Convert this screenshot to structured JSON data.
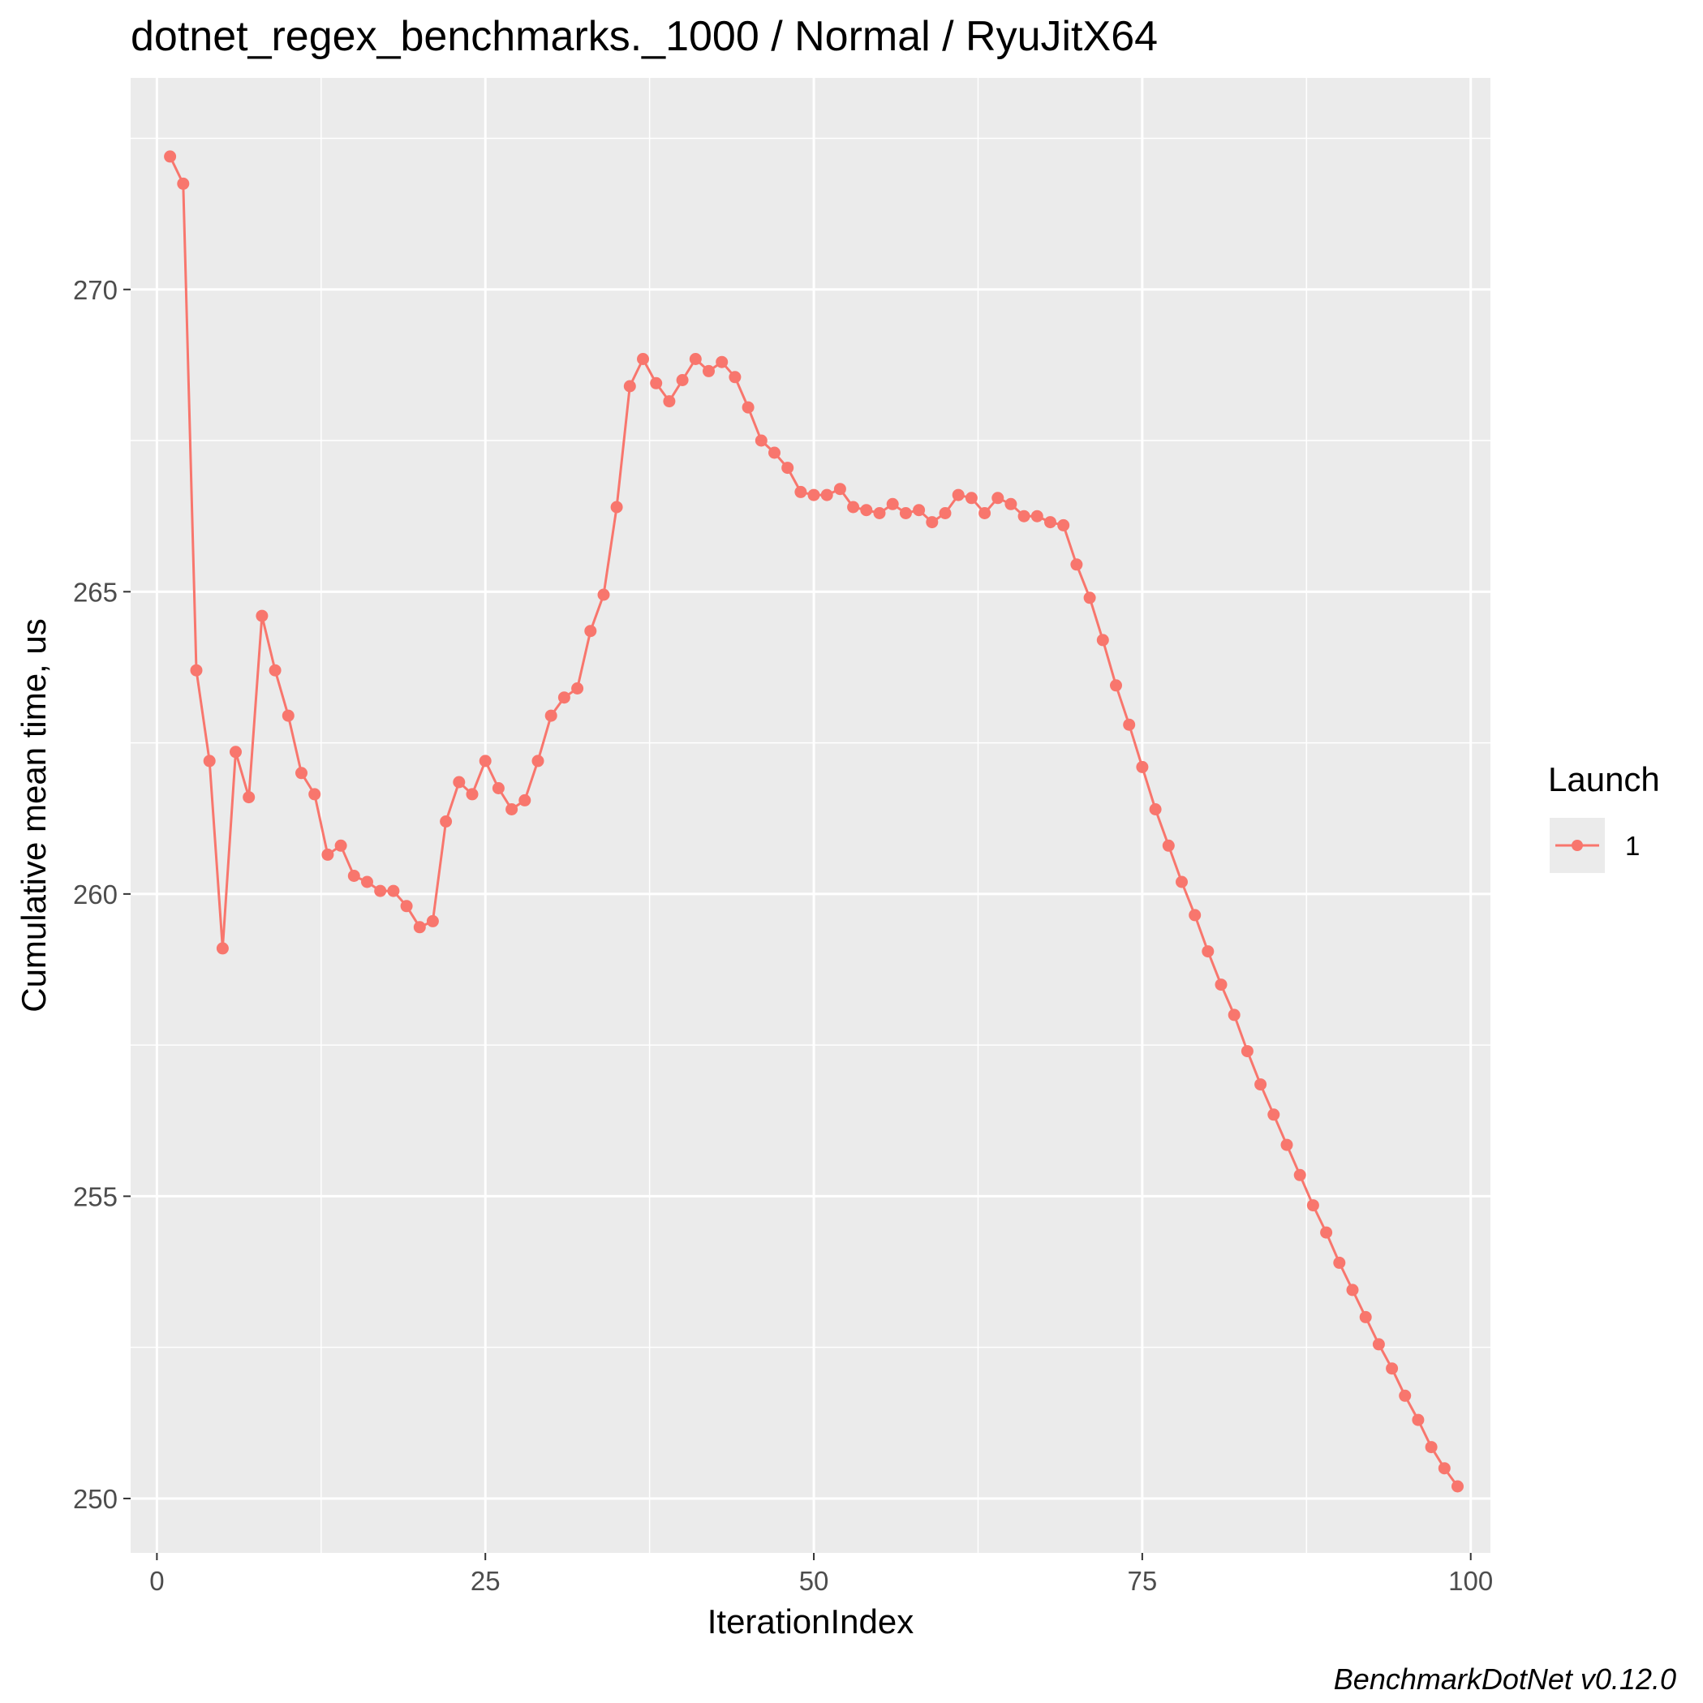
{
  "chart_data": {
    "type": "line",
    "title": "dotnet_regex_benchmarks._1000 / Normal / RyuJitX64",
    "xlabel": "IterationIndex",
    "ylabel": "Cumulative mean time, us",
    "caption": "BenchmarkDotNet v0.12.0",
    "xlim": [
      -2,
      101.5
    ],
    "ylim": [
      249.1,
      273.5
    ],
    "x_ticks": [
      0,
      25,
      50,
      75,
      100
    ],
    "y_ticks": [
      250,
      255,
      260,
      265,
      270
    ],
    "grid": true,
    "legend": {
      "title": "Launch",
      "position": "right",
      "entries": [
        "1"
      ]
    },
    "colors": {
      "series": "#f8766d",
      "panel": "#ebebeb",
      "grid": "#ffffff"
    },
    "series": [
      {
        "name": "1",
        "x": [
          1,
          2,
          3,
          4,
          5,
          6,
          7,
          8,
          9,
          10,
          11,
          12,
          13,
          14,
          15,
          16,
          17,
          18,
          19,
          20,
          21,
          22,
          23,
          24,
          25,
          26,
          27,
          28,
          29,
          30,
          31,
          32,
          33,
          34,
          35,
          36,
          37,
          38,
          39,
          40,
          41,
          42,
          43,
          44,
          45,
          46,
          47,
          48,
          49,
          50,
          51,
          52,
          53,
          54,
          55,
          56,
          57,
          58,
          59,
          60,
          61,
          62,
          63,
          64,
          65,
          66,
          67,
          68,
          69,
          70,
          71,
          72,
          73,
          74,
          75,
          76,
          77,
          78,
          79,
          80,
          81,
          82,
          83,
          84,
          85,
          86,
          87,
          88,
          89,
          90,
          91,
          92,
          93,
          94,
          95,
          96,
          97,
          98,
          99
        ],
        "values": [
          272.2,
          271.75,
          263.7,
          262.2,
          259.1,
          262.35,
          261.6,
          264.6,
          263.7,
          262.95,
          262.0,
          261.65,
          260.65,
          260.8,
          260.3,
          260.2,
          260.05,
          260.05,
          259.8,
          259.45,
          259.55,
          261.2,
          261.85,
          261.65,
          262.2,
          261.75,
          261.4,
          261.55,
          262.2,
          262.95,
          263.25,
          263.4,
          264.35,
          264.95,
          266.4,
          268.4,
          268.85,
          268.45,
          268.15,
          268.5,
          268.85,
          268.65,
          268.8,
          268.55,
          268.05,
          267.5,
          267.3,
          267.05,
          266.65,
          266.6,
          266.6,
          266.7,
          266.4,
          266.35,
          266.3,
          266.45,
          266.3,
          266.35,
          266.15,
          266.3,
          266.6,
          266.55,
          266.3,
          266.55,
          266.45,
          266.25,
          266.25,
          266.15,
          266.1,
          265.45,
          264.9,
          264.2,
          263.45,
          262.8,
          262.1,
          261.4,
          260.8,
          260.2,
          259.65,
          259.05,
          258.5,
          258.0,
          257.4,
          256.85,
          256.35,
          255.85,
          255.35,
          254.85,
          254.4,
          253.9,
          253.45,
          253.0,
          252.55,
          252.15,
          251.7,
          251.3,
          250.85,
          250.5,
          250.2
        ]
      }
    ]
  }
}
